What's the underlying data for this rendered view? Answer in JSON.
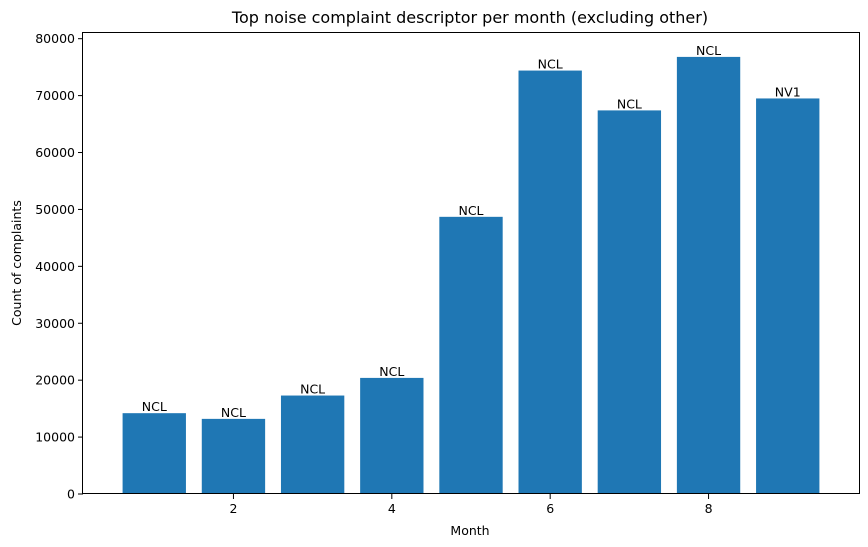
{
  "chart_data": {
    "type": "bar",
    "title": "Top noise complaint descriptor per month (excluding other)",
    "xlabel": "Month",
    "ylabel": "Count of complaints",
    "x": [
      1,
      2,
      3,
      4,
      5,
      6,
      7,
      8,
      9
    ],
    "values": [
      14200,
      13200,
      17300,
      20400,
      48700,
      74400,
      67400,
      76800,
      69500
    ],
    "bar_labels": [
      "NCL",
      "NCL",
      "NCL",
      "NCL",
      "NCL",
      "NCL",
      "NCL",
      "NCL",
      "NV1"
    ],
    "xlim": [
      0.1,
      9.9
    ],
    "ylim": [
      0,
      81000
    ],
    "xticks": [
      2,
      4,
      6,
      8
    ],
    "yticks": [
      0,
      10000,
      20000,
      30000,
      40000,
      50000,
      60000,
      70000,
      80000
    ],
    "bar_color": "#1f77b4",
    "grid": false,
    "legend": "none"
  }
}
